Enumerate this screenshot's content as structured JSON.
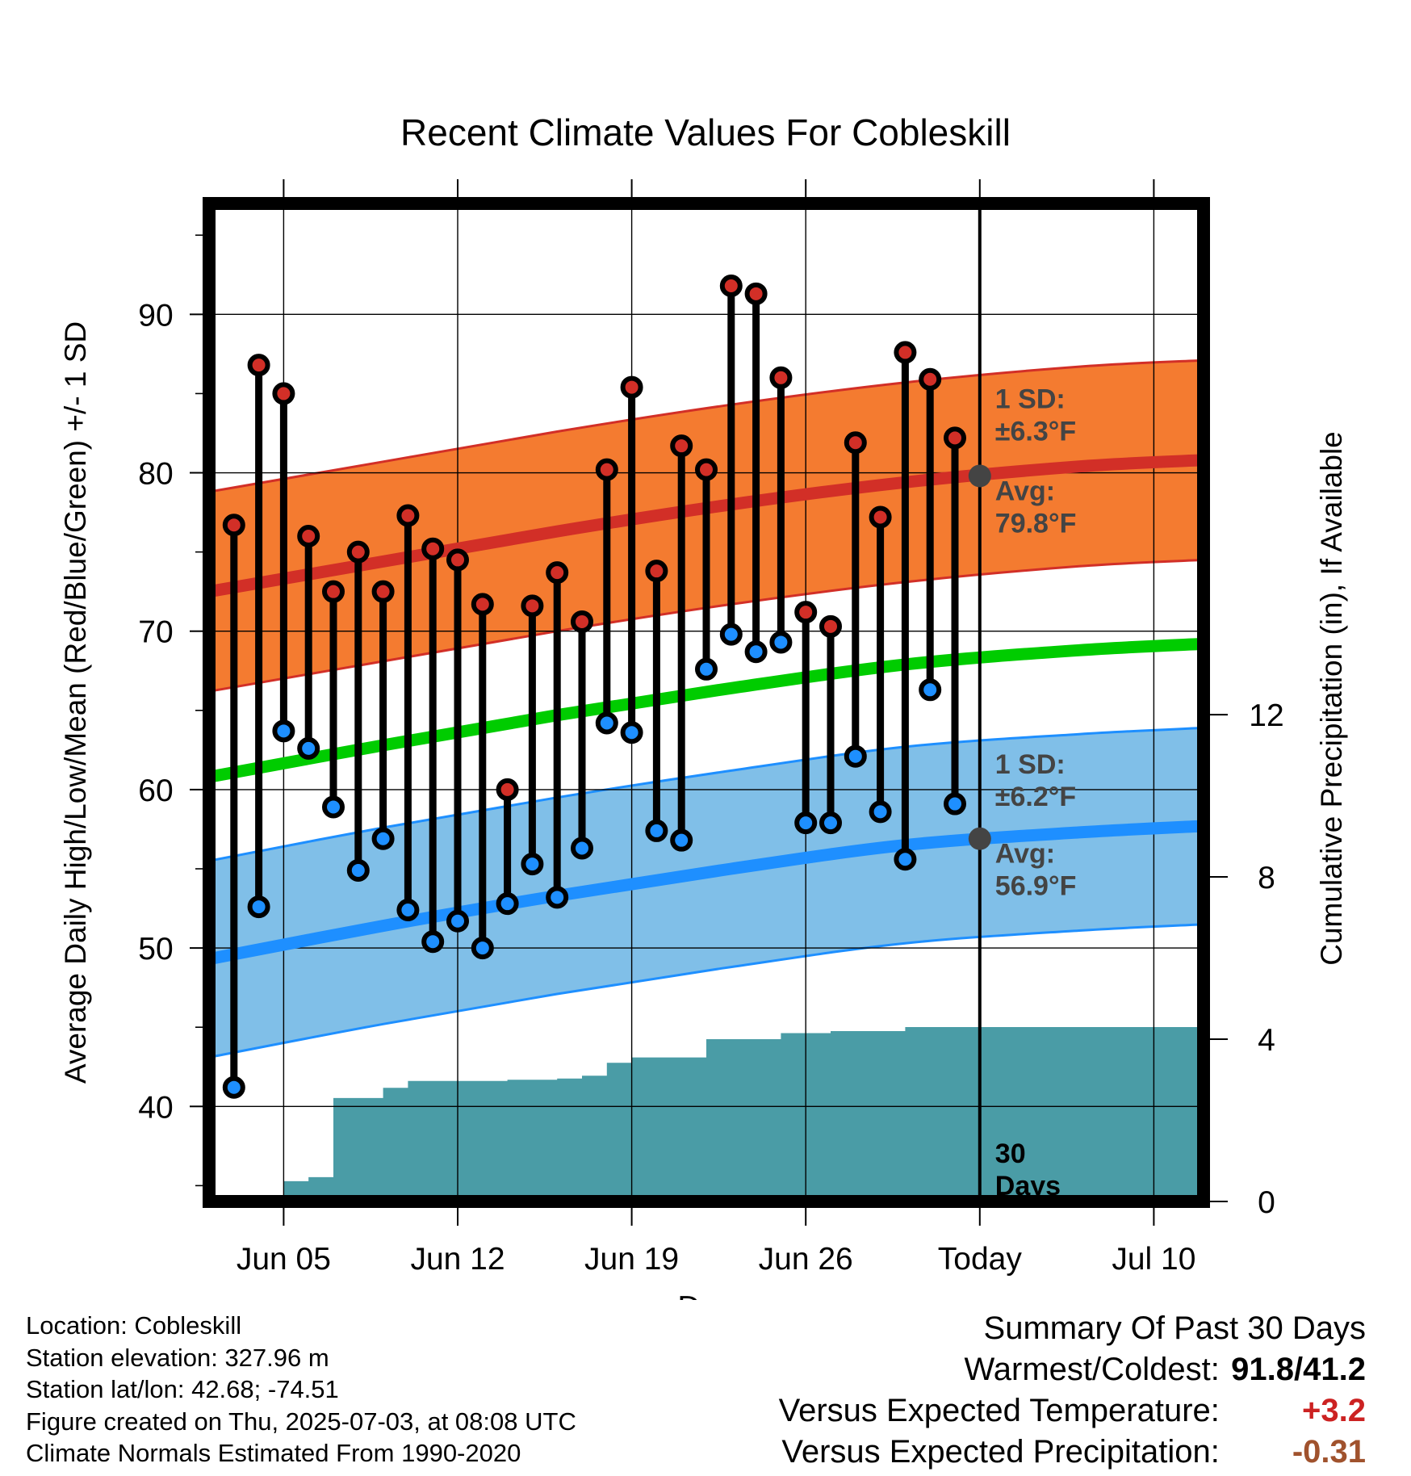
{
  "chart_data": {
    "type": "line",
    "title": "Recent Climate Values For Cobleskill",
    "xlabel": "Day",
    "ylabel_left": "Average Daily High/Low/Mean (Red/Blue/Green) +/- 1 SD",
    "ylabel_right": "Cumulative Precipitation (in), If Available",
    "x_range": [
      "2025-06-02",
      "2025-07-12"
    ],
    "ylim_left": [
      34,
      97
    ],
    "ylim_right": [
      0,
      24.6
    ],
    "x_ticks": [
      {
        "date": "2025-06-05",
        "label": "Jun 05"
      },
      {
        "date": "2025-06-12",
        "label": "Jun 12"
      },
      {
        "date": "2025-06-19",
        "label": "Jun 19"
      },
      {
        "date": "2025-06-26",
        "label": "Jun 26"
      },
      {
        "date": "2025-07-03",
        "label": "Today"
      },
      {
        "date": "2025-07-10",
        "label": "Jul 10"
      }
    ],
    "y_ticks_left": [
      40,
      50,
      60,
      70,
      80,
      90
    ],
    "y_ticks_right": [
      0,
      4,
      8,
      12
    ],
    "grid": true,
    "today": "2025-07-03",
    "dates": [
      "2025-06-03",
      "2025-06-04",
      "2025-06-05",
      "2025-06-06",
      "2025-06-07",
      "2025-06-08",
      "2025-06-09",
      "2025-06-10",
      "2025-06-11",
      "2025-06-12",
      "2025-06-13",
      "2025-06-14",
      "2025-06-15",
      "2025-06-16",
      "2025-06-17",
      "2025-06-18",
      "2025-06-19",
      "2025-06-20",
      "2025-06-21",
      "2025-06-22",
      "2025-06-23",
      "2025-06-24",
      "2025-06-25",
      "2025-06-26",
      "2025-06-27",
      "2025-06-28",
      "2025-06-29",
      "2025-06-30",
      "2025-07-01",
      "2025-07-02"
    ],
    "high": [
      76.7,
      86.8,
      85.0,
      76.0,
      72.5,
      75.0,
      72.5,
      77.3,
      75.2,
      74.5,
      71.7,
      60.0,
      71.6,
      73.7,
      70.6,
      80.2,
      85.4,
      73.8,
      81.7,
      80.2,
      91.8,
      91.3,
      86.0,
      71.2,
      70.3,
      81.9,
      77.2,
      87.6,
      85.9,
      82.2
    ],
    "low": [
      41.2,
      52.6,
      63.7,
      62.6,
      58.9,
      54.9,
      56.9,
      52.4,
      50.4,
      51.7,
      50.0,
      52.8,
      55.3,
      53.2,
      56.3,
      64.2,
      63.6,
      57.4,
      56.8,
      67.6,
      69.8,
      68.7,
      69.3,
      57.9,
      57.9,
      62.1,
      58.6,
      55.6,
      66.3,
      59.1
    ],
    "normal_high": {
      "x": [
        "2025-06-02",
        "2025-06-09",
        "2025-06-16",
        "2025-06-23",
        "2025-06-30",
        "2025-07-07",
        "2025-07-12"
      ],
      "mean": [
        72.5,
        74.4,
        76.3,
        78.0,
        79.4,
        80.4,
        80.8
      ],
      "sd": 6.3
    },
    "normal_mean": {
      "x": [
        "2025-06-02",
        "2025-06-09",
        "2025-06-16",
        "2025-06-23",
        "2025-06-30",
        "2025-07-07",
        "2025-07-12"
      ],
      "mean": [
        60.8,
        62.8,
        64.7,
        66.4,
        67.9,
        68.8,
        69.2
      ]
    },
    "normal_low": {
      "x": [
        "2025-06-02",
        "2025-06-09",
        "2025-06-16",
        "2025-06-23",
        "2025-06-30",
        "2025-07-07",
        "2025-07-12"
      ],
      "mean": [
        49.3,
        51.4,
        53.3,
        55.0,
        56.5,
        57.3,
        57.7
      ],
      "sd": 6.2
    },
    "precip": {
      "dates": [
        "2025-06-04",
        "2025-06-05",
        "2025-06-06",
        "2025-06-07",
        "2025-06-08",
        "2025-06-09",
        "2025-06-10",
        "2025-06-11",
        "2025-06-12",
        "2025-06-13",
        "2025-06-14",
        "2025-06-15",
        "2025-06-16",
        "2025-06-17",
        "2025-06-18",
        "2025-06-19",
        "2025-06-20",
        "2025-06-21",
        "2025-06-22",
        "2025-06-23",
        "2025-06-24",
        "2025-06-25",
        "2025-06-26",
        "2025-06-27",
        "2025-06-28",
        "2025-06-29",
        "2025-06-30",
        "2025-07-01",
        "2025-07-02",
        "2025-07-03",
        "2025-07-12"
      ],
      "cumulative": [
        0.0,
        0.5,
        0.6,
        2.55,
        2.55,
        2.8,
        2.97,
        2.97,
        2.97,
        2.97,
        3.0,
        3.0,
        3.03,
        3.1,
        3.42,
        3.55,
        3.55,
        3.55,
        4.0,
        4.0,
        4.0,
        4.15,
        4.15,
        4.2,
        4.2,
        4.2,
        4.3,
        4.3,
        4.3,
        4.3,
        4.3
      ]
    },
    "annotations": [
      {
        "lines": [
          "1 SD:",
          "±6.3°F"
        ],
        "anchor": "normal-high-band"
      },
      {
        "lines": [
          "Avg:",
          "79.8°F"
        ],
        "anchor": "normal-high-today",
        "value": 79.8
      },
      {
        "lines": [
          "1 SD:",
          "±6.2°F"
        ],
        "anchor": "normal-low-band"
      },
      {
        "lines": [
          "Avg:",
          "56.9°F"
        ],
        "anchor": "normal-low-today",
        "value": 56.9
      },
      {
        "lines": [
          "30",
          "Days"
        ],
        "anchor": "today-line"
      }
    ],
    "colors": {
      "high_band": "#f47b30",
      "high_line": "#d22f27",
      "mean_line": "#00cc00",
      "low_band": "#80bfe8",
      "low_line": "#1e8fff",
      "precip": "#4a9ca6",
      "high_dot": "#d22f27",
      "low_dot": "#1e8fff",
      "today_marker": "#444444",
      "annotation_text": "#444444"
    }
  },
  "info": {
    "location": "Location: Cobleskill",
    "elevation": "Station elevation: 327.96 m",
    "latlon": "Station lat/lon: 42.68; -74.51",
    "created": "Figure created on Thu, 2025-07-03, at 08:08 UTC",
    "normals": "Climate Normals Estimated From 1990-2020"
  },
  "summary": {
    "heading": "Summary Of Past 30 Days",
    "warmest_label": "Warmest/Coldest:",
    "warmest_value": "91.8/41.2",
    "temp_label": "Versus Expected Temperature:",
    "temp_value": "+3.2",
    "precip_label": "Versus Expected Precipitation:",
    "precip_value": "-0.31"
  }
}
